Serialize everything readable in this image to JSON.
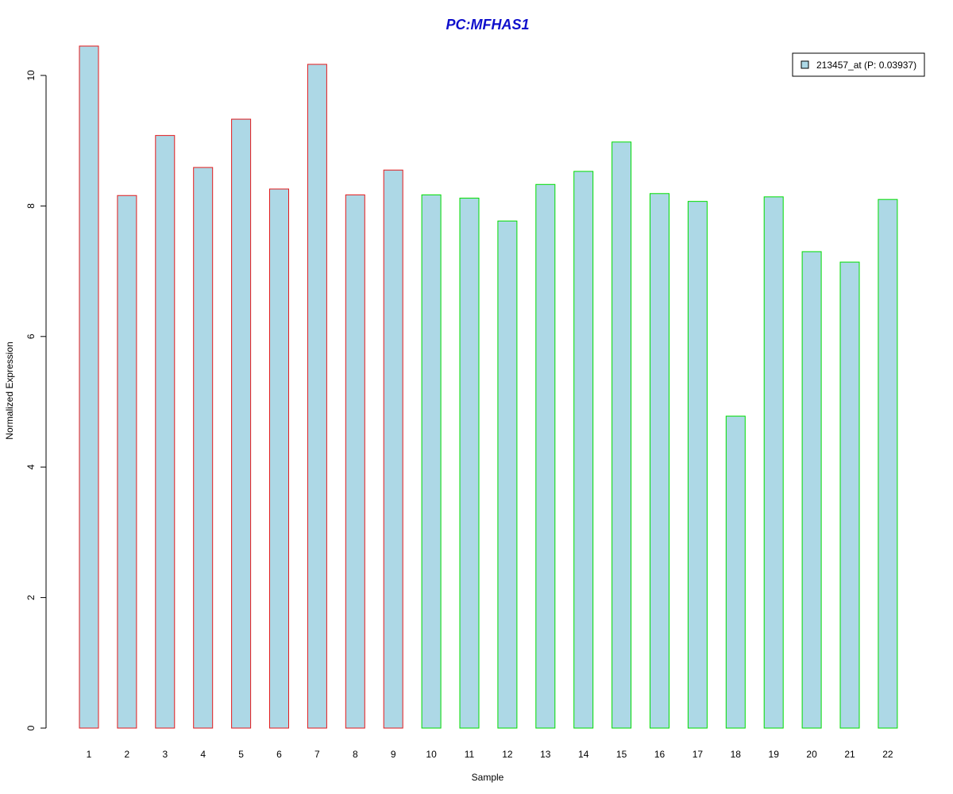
{
  "chart_data": {
    "type": "bar",
    "title": "PC:MFHAS1",
    "xlabel": "Sample",
    "ylabel": "Normalized Expression",
    "categories": [
      "1",
      "2",
      "3",
      "4",
      "5",
      "6",
      "7",
      "8",
      "9",
      "10",
      "11",
      "12",
      "13",
      "14",
      "15",
      "16",
      "17",
      "18",
      "19",
      "20",
      "21",
      "22"
    ],
    "series": [
      {
        "name": "213457_at (P: 0.03937)",
        "values": [
          10.45,
          8.16,
          9.08,
          8.59,
          9.33,
          8.26,
          10.17,
          8.17,
          8.55,
          8.17,
          8.12,
          7.77,
          8.33,
          8.53,
          8.98,
          8.19,
          8.07,
          4.78,
          8.14,
          7.3,
          7.14,
          8.1
        ]
      }
    ],
    "group_border_colors": [
      "#E41A1C",
      "#E41A1C",
      "#E41A1C",
      "#E41A1C",
      "#E41A1C",
      "#E41A1C",
      "#E41A1C",
      "#E41A1C",
      "#E41A1C",
      "#00DD00",
      "#00DD00",
      "#00DD00",
      "#00DD00",
      "#00DD00",
      "#00DD00",
      "#00DD00",
      "#00DD00",
      "#00DD00",
      "#00DD00",
      "#00DD00",
      "#00DD00",
      "#00DD00"
    ],
    "bar_fill_color": "#ADD8E6",
    "title_color": "#1010CC",
    "ylim": [
      0,
      10.5
    ],
    "yticks": [
      0,
      2,
      4,
      6,
      8,
      10
    ],
    "legend_position": "top-right",
    "grid": false
  }
}
